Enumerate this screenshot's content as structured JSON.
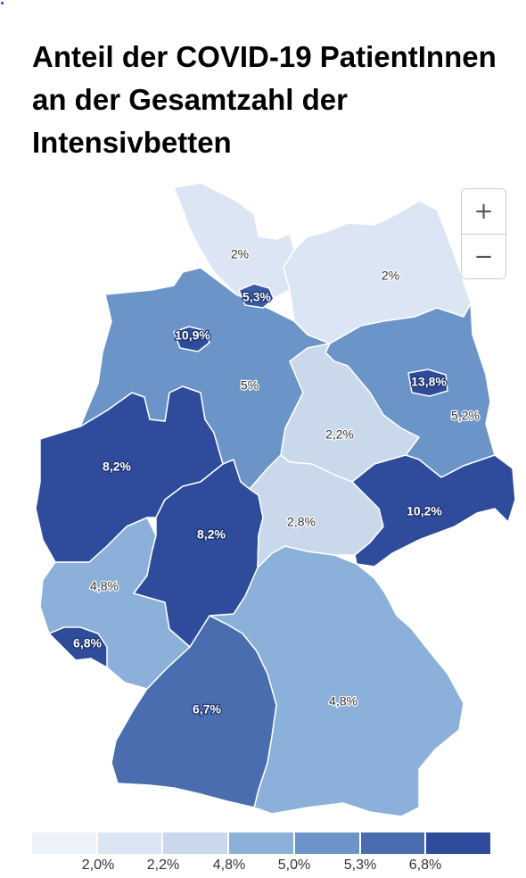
{
  "title": "Anteil der COVID-19 PatientInnen an der Gesamtzahl der Intensivbetten",
  "zoom": {
    "in_label": "+",
    "out_label": "−"
  },
  "map": {
    "regions": [
      {
        "key": "schleswig-holstein",
        "label": "2%",
        "value": 2.0,
        "color": "#dce5f4"
      },
      {
        "key": "mecklenburg-vorpommern",
        "label": "2%",
        "value": 2.0,
        "color": "#dce5f4"
      },
      {
        "key": "hamburg",
        "label": "5,3%",
        "value": 5.3,
        "color": "#3b5aa5"
      },
      {
        "key": "bremen",
        "label": "10,9%",
        "value": 10.9,
        "color": "#2e4c9b"
      },
      {
        "key": "niedersachsen",
        "label": "5%",
        "value": 5.0,
        "color": "#6b94c8"
      },
      {
        "key": "berlin",
        "label": "13,8%",
        "value": 13.8,
        "color": "#2e4c9b"
      },
      {
        "key": "brandenburg",
        "label": "5,2%",
        "value": 5.2,
        "color": "#6b94c8"
      },
      {
        "key": "sachsen-anhalt",
        "label": "2,2%",
        "value": 2.2,
        "color": "#c9d8ea"
      },
      {
        "key": "nordrhein-westfalen",
        "label": "8,2%",
        "value": 8.2,
        "color": "#2e4c9b"
      },
      {
        "key": "hessen",
        "label": "8,2%",
        "value": 8.2,
        "color": "#2e4c9b"
      },
      {
        "key": "thueringen",
        "label": "2,8%",
        "value": 2.8,
        "color": "#c9d8ea"
      },
      {
        "key": "sachsen",
        "label": "10,2%",
        "value": 10.2,
        "color": "#2e4c9b"
      },
      {
        "key": "rheinland-pfalz",
        "label": "4,8%",
        "value": 4.8,
        "color": "#8bb0d9"
      },
      {
        "key": "saarland",
        "label": "6,8%",
        "value": 6.8,
        "color": "#2e4c9b"
      },
      {
        "key": "baden-wuerttemberg",
        "label": "6,7%",
        "value": 6.7,
        "color": "#4a6db0"
      },
      {
        "key": "bayern",
        "label": "4,8%",
        "value": 4.8,
        "color": "#8bb0d9"
      }
    ]
  },
  "legend": {
    "colors": [
      "#eef2fb",
      "#dce5f4",
      "#c9d8ea",
      "#8bb0d9",
      "#6b94c8",
      "#4a6db0",
      "#2e4c9b"
    ],
    "labels": [
      "2,0%",
      "2,2%",
      "4,8%",
      "5,0%",
      "5,3%",
      "6,8%"
    ]
  }
}
